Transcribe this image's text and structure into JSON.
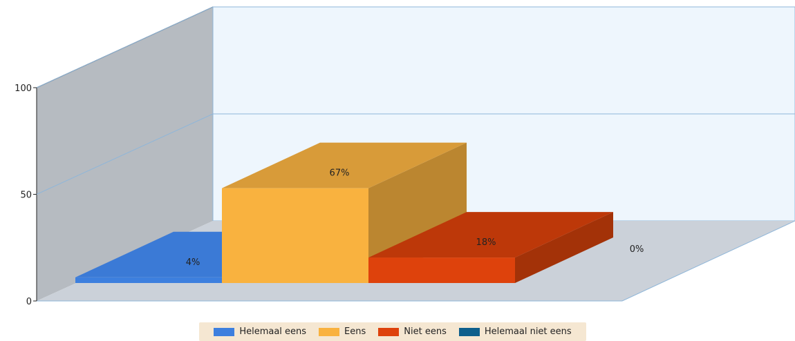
{
  "chart_data": {
    "type": "bar",
    "categories": [
      "Helemaal eens",
      "Eens",
      "Niet eens",
      "Helemaal niet eens"
    ],
    "values": [
      4,
      67,
      18,
      0
    ],
    "data_labels": [
      "4%",
      "67%",
      "18%",
      "0%"
    ],
    "ylim": [
      0,
      100
    ],
    "yticks": [
      0,
      50,
      100
    ],
    "ytick_labels": [
      "0",
      "50",
      "100"
    ],
    "grid": true,
    "legend": "bottom",
    "style": "3d",
    "colors": [
      "#3d7fde",
      "#f9b23f",
      "#de420c",
      "#0e5f8c"
    ],
    "side_colors": [
      "#2d63b0",
      "#bb8630",
      "#a33208",
      "#0a4668"
    ],
    "top_colors": [
      "#3b7ad6",
      "#d89b39",
      "#bd3809",
      "#0c5178"
    ]
  },
  "colors": {
    "back_wall": "#eef6fd",
    "side_wall": "#b6bbc1",
    "floor": "#cbd1d9",
    "grid": "#8fb6d9"
  }
}
